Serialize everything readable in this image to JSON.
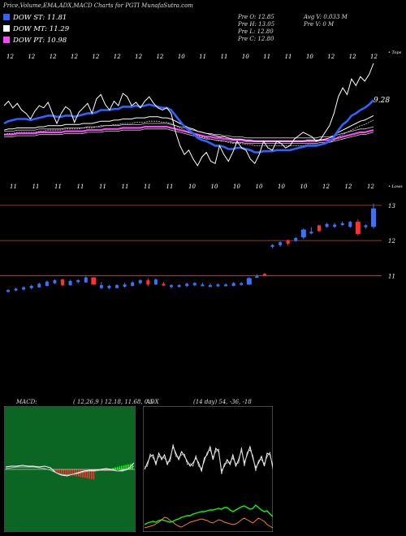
{
  "header": {
    "title": "Price,Volume,EMA,ADX,MACD Charts for PGTI MunafaSutra.com"
  },
  "legend": [
    {
      "label": "DOW ST: 11.81",
      "color": "#2f62ff"
    },
    {
      "label": "DOW MT: 11.29",
      "color": "#ffffff"
    },
    {
      "label": "DOW PT: 10.98",
      "color": "#ff44ff"
    }
  ],
  "ohlc": {
    "open": "Pre  O: 12.85",
    "high": "Pre  H: 13.05",
    "low": "Pre  L: 12.80",
    "close": "Pre  C: 12.80",
    "avg_vol": "Avg V: 0.033 M",
    "pre_vol": "Pre  V: 0  M"
  },
  "colors": {
    "bull": "#3a72ff",
    "bear": "#ff3030",
    "ema_short": "#2f62ff",
    "ema_mid": "#ffffff",
    "ema_long": "#ff44ff",
    "guide": "#b03a2e",
    "macd_hist_pos": "#00ff00",
    "macd_hist_neg": "#ff3030",
    "adx_pos": "#00ff00",
    "adx_neg": "#ff7f27"
  },
  "chart_data": [
    {
      "type": "line",
      "name": "ema-panel",
      "top_axis_label": "• Tops",
      "bottom_axis_label": "• Lows",
      "top_labels": [
        "12",
        "12",
        "12",
        "12",
        "12",
        "12",
        "12",
        "12",
        "10",
        "11",
        "11",
        "10",
        "11",
        "11",
        "10",
        "12",
        "12",
        "12"
      ],
      "bottom_labels": [
        "11",
        "11",
        "11",
        "11",
        "11",
        "11",
        "11",
        "11",
        "10",
        "10",
        "10",
        "10",
        "10",
        "10",
        "12",
        "12",
        "12"
      ],
      "price_label": "9.28",
      "price": [
        0.62,
        0.66,
        0.6,
        0.64,
        0.58,
        0.55,
        0.5,
        0.57,
        0.62,
        0.6,
        0.65,
        0.55,
        0.46,
        0.55,
        0.61,
        0.58,
        0.47,
        0.56,
        0.6,
        0.64,
        0.55,
        0.68,
        0.72,
        0.63,
        0.58,
        0.66,
        0.62,
        0.73,
        0.7,
        0.62,
        0.65,
        0.6,
        0.66,
        0.7,
        0.64,
        0.6,
        0.58,
        0.6,
        0.55,
        0.38,
        0.26,
        0.18,
        0.22,
        0.14,
        0.08,
        0.16,
        0.2,
        0.12,
        0.1,
        0.26,
        0.18,
        0.12,
        0.2,
        0.3,
        0.24,
        0.22,
        0.14,
        0.1,
        0.18,
        0.3,
        0.24,
        0.22,
        0.3,
        0.28,
        0.24,
        0.26,
        0.32,
        0.35,
        0.38,
        0.36,
        0.34,
        0.3,
        0.32,
        0.38,
        0.44,
        0.55,
        0.7,
        0.78,
        0.72,
        0.86,
        0.8,
        0.88,
        0.84,
        0.9,
        1.0
      ],
      "ema_short": [
        0.46,
        0.48,
        0.49,
        0.5,
        0.5,
        0.5,
        0.49,
        0.5,
        0.51,
        0.52,
        0.53,
        0.53,
        0.52,
        0.52,
        0.53,
        0.53,
        0.52,
        0.53,
        0.54,
        0.55,
        0.55,
        0.56,
        0.58,
        0.58,
        0.58,
        0.59,
        0.59,
        0.61,
        0.61,
        0.61,
        0.62,
        0.61,
        0.62,
        0.63,
        0.62,
        0.61,
        0.6,
        0.6,
        0.58,
        0.53,
        0.48,
        0.43,
        0.4,
        0.37,
        0.33,
        0.31,
        0.3,
        0.28,
        0.26,
        0.26,
        0.25,
        0.23,
        0.23,
        0.24,
        0.24,
        0.23,
        0.22,
        0.2,
        0.2,
        0.21,
        0.21,
        0.21,
        0.22,
        0.22,
        0.22,
        0.22,
        0.23,
        0.24,
        0.25,
        0.26,
        0.26,
        0.26,
        0.27,
        0.28,
        0.3,
        0.34,
        0.4,
        0.45,
        0.48,
        0.53,
        0.55,
        0.58,
        0.6,
        0.63,
        0.67
      ],
      "ema_mid": [
        0.4,
        0.41,
        0.41,
        0.42,
        0.42,
        0.42,
        0.42,
        0.42,
        0.43,
        0.43,
        0.44,
        0.44,
        0.44,
        0.44,
        0.45,
        0.45,
        0.45,
        0.45,
        0.46,
        0.46,
        0.46,
        0.47,
        0.48,
        0.48,
        0.48,
        0.49,
        0.49,
        0.5,
        0.5,
        0.5,
        0.51,
        0.51,
        0.51,
        0.52,
        0.52,
        0.52,
        0.51,
        0.51,
        0.5,
        0.48,
        0.46,
        0.44,
        0.42,
        0.41,
        0.39,
        0.38,
        0.37,
        0.36,
        0.35,
        0.34,
        0.34,
        0.33,
        0.32,
        0.32,
        0.32,
        0.31,
        0.31,
        0.3,
        0.3,
        0.3,
        0.3,
        0.3,
        0.3,
        0.3,
        0.3,
        0.3,
        0.3,
        0.3,
        0.3,
        0.31,
        0.31,
        0.31,
        0.31,
        0.32,
        0.33,
        0.35,
        0.38,
        0.4,
        0.42,
        0.44,
        0.46,
        0.48,
        0.49,
        0.51,
        0.53
      ],
      "ema_long": [
        0.36,
        0.36,
        0.36,
        0.37,
        0.37,
        0.37,
        0.37,
        0.37,
        0.38,
        0.38,
        0.38,
        0.38,
        0.38,
        0.38,
        0.39,
        0.39,
        0.39,
        0.39,
        0.39,
        0.4,
        0.4,
        0.4,
        0.4,
        0.41,
        0.41,
        0.41,
        0.41,
        0.42,
        0.42,
        0.42,
        0.42,
        0.42,
        0.43,
        0.43,
        0.43,
        0.43,
        0.43,
        0.43,
        0.42,
        0.41,
        0.4,
        0.39,
        0.38,
        0.37,
        0.36,
        0.35,
        0.34,
        0.34,
        0.33,
        0.33,
        0.32,
        0.32,
        0.31,
        0.31,
        0.31,
        0.3,
        0.3,
        0.3,
        0.3,
        0.3,
        0.3,
        0.3,
        0.3,
        0.3,
        0.3,
        0.3,
        0.3,
        0.3,
        0.3,
        0.3,
        0.3,
        0.3,
        0.31,
        0.31,
        0.31,
        0.32,
        0.33,
        0.34,
        0.35,
        0.36,
        0.37,
        0.38,
        0.38,
        0.39,
        0.4
      ]
    },
    {
      "type": "candlestick",
      "name": "price-panel",
      "y_ticks": [
        "13",
        "12",
        "11"
      ],
      "y_tick_values": [
        13,
        12,
        11
      ],
      "ylim": [
        10.25,
        13.25
      ],
      "candles": [
        [
          10.56,
          10.62,
          10.52,
          10.58,
          1
        ],
        [
          10.6,
          10.66,
          10.56,
          10.62,
          1
        ],
        [
          10.62,
          10.7,
          10.58,
          10.66,
          1
        ],
        [
          10.66,
          10.74,
          10.62,
          10.7,
          1
        ],
        [
          10.68,
          10.8,
          10.66,
          10.76,
          1
        ],
        [
          10.72,
          10.86,
          10.7,
          10.82,
          1
        ],
        [
          10.8,
          10.9,
          10.76,
          10.86,
          1
        ],
        [
          10.88,
          10.92,
          10.7,
          10.74,
          0
        ],
        [
          10.74,
          10.88,
          10.72,
          10.84,
          1
        ],
        [
          10.84,
          10.9,
          10.78,
          10.86,
          1
        ],
        [
          10.82,
          10.98,
          10.8,
          10.94,
          1
        ],
        [
          10.94,
          10.96,
          10.74,
          10.76,
          0
        ],
        [
          10.72,
          10.82,
          10.62,
          10.66,
          1
        ],
        [
          10.66,
          10.74,
          10.62,
          10.7,
          1
        ],
        [
          10.66,
          10.76,
          10.64,
          10.72,
          1
        ],
        [
          10.7,
          10.8,
          10.66,
          10.74,
          1
        ],
        [
          10.72,
          10.84,
          10.7,
          10.8,
          1
        ],
        [
          10.8,
          10.9,
          10.76,
          10.86,
          1
        ],
        [
          10.86,
          10.92,
          10.7,
          10.76,
          0
        ],
        [
          10.76,
          10.92,
          10.74,
          10.88,
          1
        ],
        [
          10.74,
          10.82,
          10.7,
          10.76,
          0
        ],
        [
          10.7,
          10.76,
          10.64,
          10.72,
          1
        ],
        [
          10.7,
          10.76,
          10.66,
          10.72,
          1
        ],
        [
          10.72,
          10.8,
          10.68,
          10.76,
          1
        ],
        [
          10.74,
          10.82,
          10.7,
          10.78,
          1
        ],
        [
          10.74,
          10.8,
          10.7,
          10.74,
          1
        ],
        [
          10.72,
          10.78,
          10.68,
          10.72,
          1
        ],
        [
          10.74,
          10.78,
          10.68,
          10.74,
          1
        ],
        [
          10.72,
          10.78,
          10.7,
          10.74,
          1
        ],
        [
          10.72,
          10.82,
          10.7,
          10.78,
          1
        ],
        [
          10.76,
          10.82,
          10.72,
          10.78,
          1
        ],
        [
          10.76,
          10.96,
          10.74,
          10.92,
          1
        ],
        [
          10.96,
          11.04,
          10.94,
          10.98,
          1
        ],
        [
          11.02,
          11.08,
          10.98,
          11.04,
          0
        ],
        [
          11.84,
          11.9,
          11.78,
          11.86,
          1
        ],
        [
          11.88,
          11.98,
          11.82,
          11.94,
          1
        ],
        [
          11.92,
          12.02,
          11.86,
          12.0,
          0
        ],
        [
          12.0,
          12.1,
          11.96,
          12.06,
          1
        ],
        [
          12.1,
          12.34,
          12.04,
          12.3,
          1
        ],
        [
          12.24,
          12.38,
          12.18,
          12.22,
          1
        ],
        [
          12.28,
          12.44,
          12.24,
          12.42,
          0
        ],
        [
          12.4,
          12.5,
          12.36,
          12.46,
          1
        ],
        [
          12.4,
          12.5,
          12.36,
          12.44,
          1
        ],
        [
          12.46,
          12.54,
          12.42,
          12.48,
          1
        ],
        [
          12.4,
          12.56,
          12.36,
          12.52,
          1
        ],
        [
          12.52,
          12.6,
          12.14,
          12.2,
          0
        ],
        [
          12.4,
          12.46,
          12.34,
          12.42,
          1
        ],
        [
          12.4,
          13.05,
          12.34,
          12.9,
          1
        ]
      ]
    },
    {
      "type": "line",
      "name": "macd-panel",
      "label": "MACD:",
      "params": "( 12,26,9 )  12.18,  11.68,  0.5"
    },
    {
      "type": "line",
      "name": "adx-panel",
      "label": "ADX",
      "params": "(14  day)  54,  -36,  -18"
    }
  ]
}
